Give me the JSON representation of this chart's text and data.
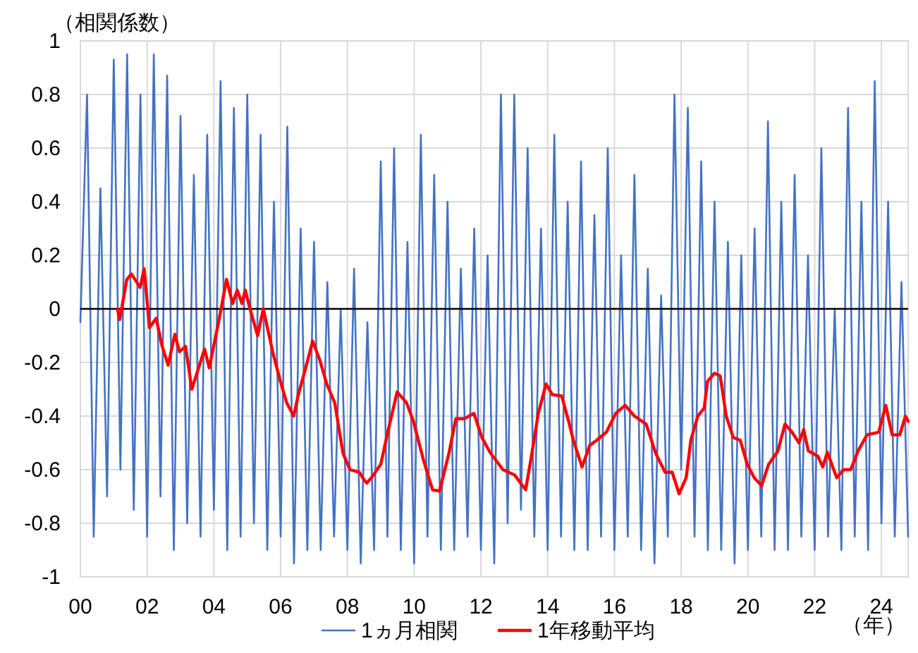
{
  "chart_data": {
    "type": "line",
    "ylabel": "（相関係数）",
    "xlabel": "（年）",
    "xlim": [
      0,
      24.8
    ],
    "ylim": [
      -1,
      1
    ],
    "xticks": [
      {
        "value": 0,
        "label": "00"
      },
      {
        "value": 2,
        "label": "02"
      },
      {
        "value": 4,
        "label": "04"
      },
      {
        "value": 6,
        "label": "06"
      },
      {
        "value": 8,
        "label": "08"
      },
      {
        "value": 10,
        "label": "10"
      },
      {
        "value": 12,
        "label": "12"
      },
      {
        "value": 14,
        "label": "14"
      },
      {
        "value": 16,
        "label": "16"
      },
      {
        "value": 18,
        "label": "18"
      },
      {
        "value": 20,
        "label": "20"
      },
      {
        "value": 22,
        "label": "22"
      },
      {
        "value": 24,
        "label": "24"
      }
    ],
    "yticks": [
      1,
      0.8,
      0.6,
      0.4,
      0.2,
      0,
      -0.2,
      -0.4,
      -0.6,
      -0.8,
      -1
    ],
    "grid": true,
    "legend": "bottom",
    "ref_lines": [
      {
        "axis": "y",
        "value": 0,
        "color": "#000000"
      }
    ],
    "series": [
      {
        "name": "1ヵ月相関",
        "color": "#4472c4",
        "x": [
          0,
          0.2,
          0.4,
          0.6,
          0.8,
          1,
          1.2,
          1.4,
          1.6,
          1.8,
          2,
          2.2,
          2.4,
          2.6,
          2.8,
          3,
          3.2,
          3.4,
          3.6,
          3.8,
          4,
          4.2,
          4.4,
          4.6,
          4.8,
          5,
          5.2,
          5.4,
          5.6,
          5.8,
          6,
          6.2,
          6.4,
          6.6,
          6.8,
          7,
          7.2,
          7.4,
          7.6,
          7.8,
          8,
          8.2,
          8.4,
          8.6,
          8.8,
          9,
          9.2,
          9.4,
          9.6,
          9.8,
          10,
          10.2,
          10.4,
          10.6,
          10.8,
          11,
          11.2,
          11.4,
          11.6,
          11.8,
          12,
          12.2,
          12.4,
          12.6,
          12.8,
          13,
          13.2,
          13.4,
          13.6,
          13.8,
          14,
          14.2,
          14.4,
          14.6,
          14.8,
          15,
          15.2,
          15.4,
          15.6,
          15.8,
          16,
          16.2,
          16.4,
          16.6,
          16.8,
          17,
          17.2,
          17.4,
          17.6,
          17.8,
          18,
          18.2,
          18.4,
          18.6,
          18.8,
          19,
          19.2,
          19.4,
          19.6,
          19.8,
          20,
          20.2,
          20.4,
          20.6,
          20.8,
          21,
          21.2,
          21.4,
          21.6,
          21.8,
          22,
          22.2,
          22.4,
          22.6,
          22.8,
          23,
          23.2,
          23.4,
          23.6,
          23.8,
          24,
          24.2,
          24.4,
          24.6,
          24.8
        ],
        "values": [
          -0.05,
          0.8,
          -0.85,
          0.45,
          -0.7,
          0.93,
          -0.6,
          0.95,
          -0.75,
          0.8,
          -0.85,
          0.95,
          -0.7,
          0.87,
          -0.9,
          0.72,
          -0.8,
          0.5,
          -0.85,
          0.65,
          -0.75,
          0.85,
          -0.9,
          0.75,
          -0.85,
          0.8,
          -0.8,
          0.65,
          -0.9,
          0.4,
          -0.85,
          0.68,
          -0.95,
          0.3,
          -0.9,
          0.25,
          -0.9,
          0.1,
          -0.85,
          0,
          -0.9,
          0.15,
          -0.95,
          -0.05,
          -0.9,
          0.55,
          -0.85,
          0.6,
          -0.9,
          0.25,
          -0.95,
          0.65,
          -0.85,
          0.5,
          -0.9,
          0.4,
          -0.9,
          0.15,
          -0.85,
          0.3,
          -0.9,
          0.2,
          -0.95,
          0.8,
          -0.8,
          0.8,
          -0.75,
          0.6,
          -0.85,
          0.3,
          -0.9,
          0.65,
          -0.85,
          0.4,
          -0.9,
          0.55,
          -0.9,
          0.35,
          -0.85,
          0.6,
          -0.9,
          0.2,
          -0.85,
          0.5,
          -0.9,
          0.15,
          -0.95,
          0.05,
          -0.85,
          0.8,
          -0.6,
          0.75,
          -0.85,
          0.55,
          -0.9,
          0.4,
          -0.9,
          0.25,
          -0.95,
          0.2,
          -0.9,
          0.3,
          -0.85,
          0.7,
          -0.9,
          0.4,
          -0.9,
          0.5,
          -0.85,
          0.2,
          -0.9,
          0.6,
          -0.85,
          0,
          -0.9,
          0.75,
          -0.85,
          0.4,
          -0.9,
          0.85,
          -0.8,
          0.4,
          -0.85,
          0.1,
          -0.85
        ]
      },
      {
        "name": "1年移動平均",
        "color": "#ff0000",
        "x": [
          1.11,
          1.18,
          1.39,
          1.53,
          1.79,
          1.91,
          2.07,
          2.27,
          2.45,
          2.63,
          2.83,
          2.97,
          3.15,
          3.34,
          3.72,
          3.86,
          4.14,
          4.38,
          4.56,
          4.7,
          4.84,
          4.94,
          5.06,
          5.31,
          5.48,
          5.76,
          5.97,
          6.18,
          6.39,
          6.53,
          6.75,
          6.96,
          7.17,
          7.38,
          7.62,
          7.87,
          8.08,
          8.36,
          8.51,
          8.58,
          8.72,
          9,
          9.21,
          9.49,
          9.77,
          9.98,
          10.27,
          10.55,
          10.76,
          11.04,
          11.25,
          11.5,
          11.79,
          12.03,
          12.27,
          12.66,
          13.01,
          13.34,
          13.5,
          13.72,
          13.95,
          14.14,
          14.42,
          14.63,
          14.77,
          15.03,
          15.26,
          15.47,
          15.76,
          16.04,
          16.32,
          16.6,
          16.95,
          17.24,
          17.52,
          17.73,
          17.94,
          18.15,
          18.29,
          18.5,
          18.69,
          18.79,
          19,
          19.17,
          19.35,
          19.56,
          19.77,
          19.98,
          20.19,
          20.41,
          20.62,
          20.9,
          21.11,
          21.32,
          21.53,
          21.67,
          21.81,
          22.1,
          22.24,
          22.38,
          22.66,
          22.87,
          23.08,
          23.3,
          23.57,
          23.92,
          24.13,
          24.32,
          24.55,
          24.72,
          24.8
        ],
        "values": [
          0,
          -0.04,
          0.11,
          0.13,
          0.08,
          0.15,
          -0.07,
          -0.035,
          -0.14,
          -0.21,
          -0.095,
          -0.16,
          -0.14,
          -0.3,
          -0.15,
          -0.22,
          -0.05,
          0.11,
          0.02,
          0.07,
          0.02,
          0.07,
          0.01,
          -0.1,
          0,
          -0.16,
          -0.26,
          -0.35,
          -0.4,
          -0.32,
          -0.22,
          -0.12,
          -0.19,
          -0.28,
          -0.35,
          -0.54,
          -0.6,
          -0.61,
          -0.64,
          -0.65,
          -0.63,
          -0.58,
          -0.46,
          -0.31,
          -0.35,
          -0.42,
          -0.56,
          -0.675,
          -0.68,
          -0.54,
          -0.41,
          -0.41,
          -0.39,
          -0.48,
          -0.535,
          -0.6,
          -0.62,
          -0.675,
          -0.56,
          -0.39,
          -0.28,
          -0.32,
          -0.325,
          -0.42,
          -0.49,
          -0.59,
          -0.51,
          -0.49,
          -0.46,
          -0.39,
          -0.36,
          -0.4,
          -0.43,
          -0.54,
          -0.61,
          -0.61,
          -0.69,
          -0.63,
          -0.49,
          -0.4,
          -0.37,
          -0.27,
          -0.24,
          -0.25,
          -0.4,
          -0.48,
          -0.49,
          -0.58,
          -0.63,
          -0.66,
          -0.58,
          -0.53,
          -0.43,
          -0.46,
          -0.5,
          -0.45,
          -0.53,
          -0.55,
          -0.59,
          -0.535,
          -0.63,
          -0.6,
          -0.6,
          -0.53,
          -0.47,
          -0.46,
          -0.36,
          -0.47,
          -0.47,
          -0.4,
          -0.42
        ]
      }
    ]
  }
}
